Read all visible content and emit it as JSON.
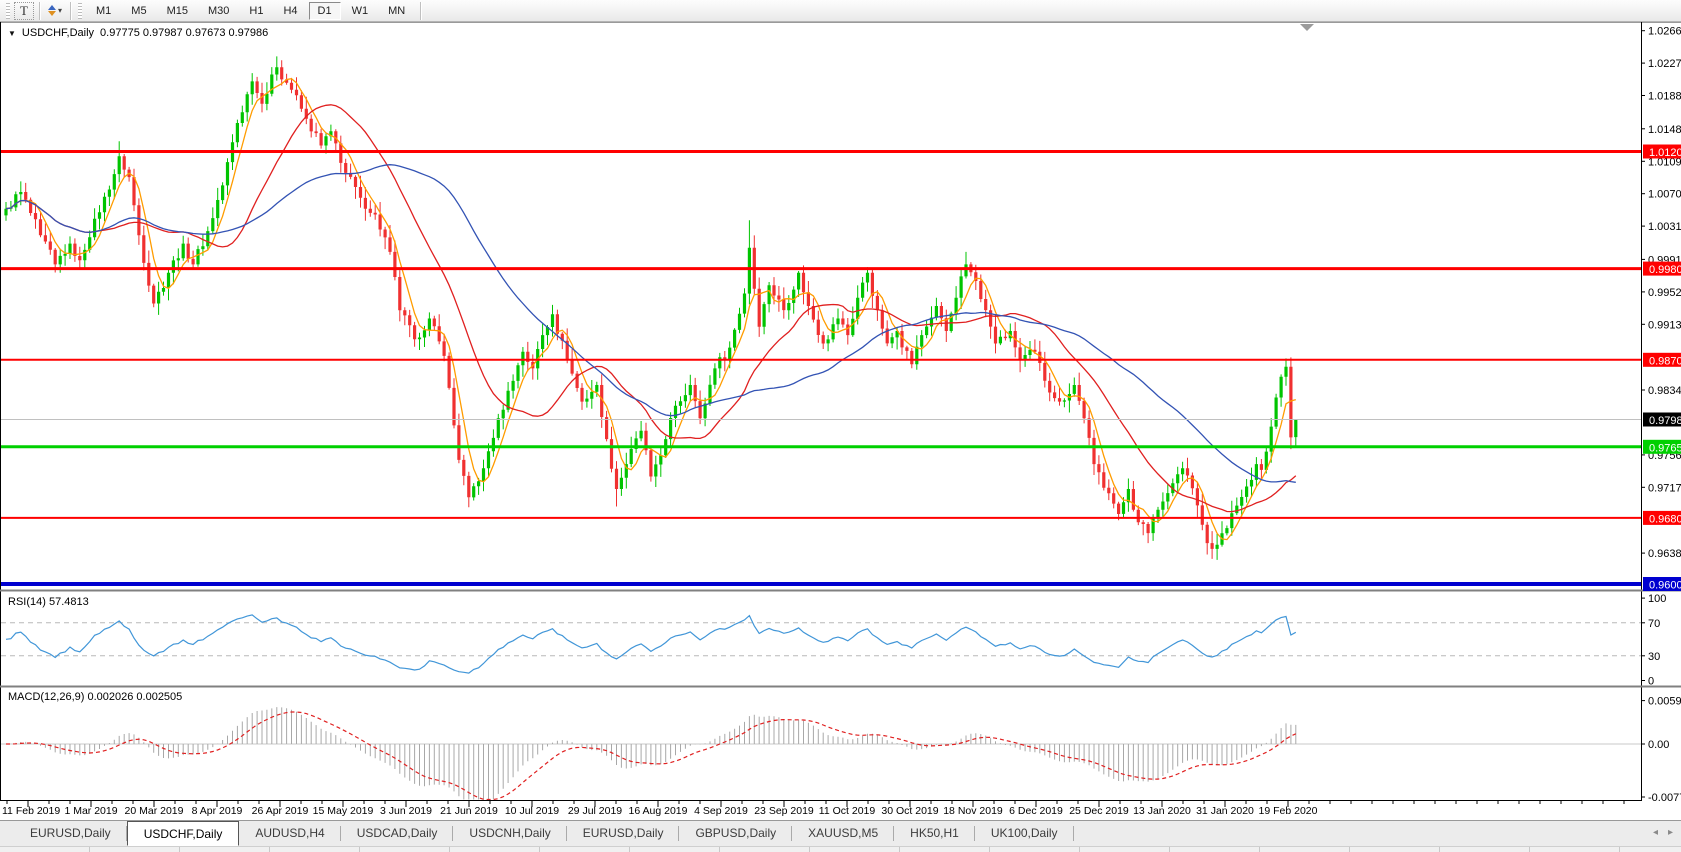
{
  "toolbar": {
    "t_button": "T",
    "timeframes": [
      {
        "label": "M1",
        "active": false
      },
      {
        "label": "M5",
        "active": false
      },
      {
        "label": "M15",
        "active": false
      },
      {
        "label": "M30",
        "active": false
      },
      {
        "label": "H1",
        "active": false
      },
      {
        "label": "H4",
        "active": false
      },
      {
        "label": "D1",
        "active": true
      },
      {
        "label": "W1",
        "active": false
      },
      {
        "label": "MN",
        "active": false
      }
    ]
  },
  "chart": {
    "title": "USDCHF,Daily",
    "ohlc_text": "0.97775 0.97987 0.97673 0.97986"
  },
  "rsi_panel": {
    "label": "RSI(14) 57.4813"
  },
  "macd_panel": {
    "label": "MACD(12,26,9) 0.002026 0.002505"
  },
  "tabs": [
    "EURUSD,Daily",
    "USDCHF,Daily",
    "AUDUSD,H4",
    "USDCAD,Daily",
    "USDCNH,Daily",
    "EURUSD,Daily",
    "GBPUSD,Daily",
    "XAUUSD,M5",
    "HK50,H1",
    "UK100,Daily"
  ],
  "active_tab_index": 1,
  "tab_arrows": {
    "left": "◂",
    "right": "▸"
  },
  "chart_data": {
    "type": "candlestick",
    "symbol": "USDCHF",
    "timeframe": "Daily",
    "bars": 263,
    "last_bar": {
      "open": 0.97775,
      "high": 0.97987,
      "low": 0.97673,
      "close": 0.97986
    },
    "price_axis_range": {
      "top": 1.0274,
      "bottom": 0.95948
    },
    "y_ticks": [
      "1.02660",
      "1.02270",
      "1.01880",
      "1.01480",
      "1.01090",
      "1.00700",
      "1.00310",
      "0.99910",
      "0.99520",
      "0.99130",
      "0.98340",
      "0.97560",
      "0.97170",
      "0.96380"
    ],
    "x_dates": [
      "11 Feb 2019",
      "1 Mar 2019",
      "20 Mar 2019",
      "8 Apr 2019",
      "26 Apr 2019",
      "15 May 2019",
      "3 Jun 2019",
      "21 Jun 2019",
      "10 Jul 2019",
      "29 Jul 2019",
      "16 Aug 2019",
      "4 Sep 2019",
      "23 Sep 2019",
      "11 Oct 2019",
      "30 Oct 2019",
      "18 Nov 2019",
      "6 Dec 2019",
      "25 Dec 2019",
      "13 Jan 2020",
      "31 Jan 2020",
      "19 Feb 2020"
    ],
    "hlines": [
      {
        "price": 1.01207,
        "label": "1.01207",
        "color": "#ff0000",
        "width": 3
      },
      {
        "price": 0.998,
        "label": "0.99800",
        "color": "#ff0000",
        "width": 3
      },
      {
        "price": 0.98703,
        "label": "0.98703",
        "color": "#ff0000",
        "width": 2
      },
      {
        "price": 0.97658,
        "label": "0.97658",
        "color": "#00d000",
        "width": 3
      },
      {
        "price": 0.96803,
        "label": "0.96803",
        "color": "#ff0000",
        "width": 2
      },
      {
        "price": 0.96008,
        "label": "0.96008",
        "color": "#0000d0",
        "width": 4
      }
    ],
    "current_price": {
      "price": 0.97986,
      "label": "0.97986",
      "line_color": "#c0c0c0",
      "badge_color": "#000000"
    },
    "candle_up_color": "#00c400",
    "candle_down_color": "#f03030",
    "moving_averages": [
      {
        "name": "fast",
        "period": 5,
        "color": "#ff9c00"
      },
      {
        "name": "mid",
        "period": 20,
        "color": "#e02020"
      },
      {
        "name": "slow",
        "period": 45,
        "color": "#3353b4"
      }
    ],
    "close_anchors": [
      [
        0,
        1.0052
      ],
      [
        3,
        1.0072
      ],
      [
        7,
        1.002
      ],
      [
        10,
        0.9985
      ],
      [
        13,
        1.001
      ],
      [
        15,
        0.999
      ],
      [
        18,
        1.004
      ],
      [
        21,
        1.0075
      ],
      [
        23,
        1.0115
      ],
      [
        25,
        1.009
      ],
      [
        27,
        1.002
      ],
      [
        30,
        0.9938
      ],
      [
        33,
        0.9975
      ],
      [
        36,
        1.001
      ],
      [
        38,
        0.9985
      ],
      [
        41,
        1.0025
      ],
      [
        44,
        1.008
      ],
      [
        47,
        1.0155
      ],
      [
        50,
        1.0205
      ],
      [
        52,
        1.0178
      ],
      [
        55,
        1.0222
      ],
      [
        58,
        1.0195
      ],
      [
        61,
        1.016
      ],
      [
        64,
        1.0128
      ],
      [
        66,
        1.0145
      ],
      [
        69,
        1.0095
      ],
      [
        72,
        1.0065
      ],
      [
        75,
        1.0045
      ],
      [
        78,
        1.0
      ],
      [
        80,
        0.993
      ],
      [
        83,
        0.9895
      ],
      [
        86,
        0.992
      ],
      [
        89,
        0.9875
      ],
      [
        92,
        0.975
      ],
      [
        94,
        0.9705
      ],
      [
        97,
        0.974
      ],
      [
        100,
        0.98
      ],
      [
        103,
        0.9845
      ],
      [
        105,
        0.988
      ],
      [
        107,
        0.986
      ],
      [
        109,
        0.99
      ],
      [
        111,
        0.9925
      ],
      [
        114,
        0.987
      ],
      [
        117,
        0.982
      ],
      [
        120,
        0.984
      ],
      [
        122,
        0.9775
      ],
      [
        124,
        0.9715
      ],
      [
        126,
        0.9745
      ],
      [
        129,
        0.9785
      ],
      [
        131,
        0.973
      ],
      [
        134,
        0.9775
      ],
      [
        136,
        0.9815
      ],
      [
        139,
        0.984
      ],
      [
        141,
        0.98
      ],
      [
        144,
        0.986
      ],
      [
        147,
        0.9885
      ],
      [
        150,
        0.995
      ],
      [
        151,
        1.0005
      ],
      [
        153,
        0.991
      ],
      [
        155,
        0.996
      ],
      [
        158,
        0.993
      ],
      [
        161,
        0.9975
      ],
      [
        163,
        0.9935
      ],
      [
        166,
        0.989
      ],
      [
        169,
        0.992
      ],
      [
        171,
        0.99
      ],
      [
        173,
        0.9945
      ],
      [
        175,
        0.9975
      ],
      [
        177,
        0.993
      ],
      [
        179,
        0.989
      ],
      [
        181,
        0.9905
      ],
      [
        184,
        0.9865
      ],
      [
        186,
        0.99
      ],
      [
        189,
        0.9935
      ],
      [
        191,
        0.9905
      ],
      [
        193,
        0.9945
      ],
      [
        195,
        0.9985
      ],
      [
        197,
        0.9965
      ],
      [
        199,
        0.993
      ],
      [
        201,
        0.989
      ],
      [
        204,
        0.9905
      ],
      [
        206,
        0.987
      ],
      [
        209,
        0.988
      ],
      [
        211,
        0.9845
      ],
      [
        214,
        0.982
      ],
      [
        217,
        0.984
      ],
      [
        219,
        0.98
      ],
      [
        221,
        0.9745
      ],
      [
        224,
        0.971
      ],
      [
        226,
        0.9685
      ],
      [
        228,
        0.9715
      ],
      [
        230,
        0.9675
      ],
      [
        232,
        0.9662
      ],
      [
        233,
        0.968
      ],
      [
        235,
        0.97
      ],
      [
        237,
        0.9722
      ],
      [
        239,
        0.974
      ],
      [
        241,
        0.9716
      ],
      [
        243,
        0.9672
      ],
      [
        244,
        0.965
      ],
      [
        245,
        0.9643
      ],
      [
        246,
        0.9648
      ],
      [
        248,
        0.9668
      ],
      [
        250,
        0.9695
      ],
      [
        252,
        0.9718
      ],
      [
        254,
        0.9745
      ],
      [
        255,
        0.9738
      ],
      [
        256,
        0.976
      ],
      [
        257,
        0.979
      ],
      [
        258,
        0.9825
      ],
      [
        259,
        0.985
      ],
      [
        260,
        0.9862
      ],
      [
        261,
        0.9777
      ],
      [
        262,
        0.97986
      ]
    ],
    "wick_overrides": [
      [
        23,
        "h",
        1.0133
      ],
      [
        50,
        "h",
        1.0215
      ],
      [
        55,
        "h",
        1.0235
      ],
      [
        94,
        "l",
        0.9693
      ],
      [
        124,
        "l",
        0.9694
      ],
      [
        151,
        "h",
        1.0038
      ],
      [
        195,
        "h",
        1.0
      ],
      [
        232,
        "l",
        0.965
      ],
      [
        245,
        "l",
        0.9631
      ],
      [
        260,
        "h",
        0.9872
      ],
      [
        261,
        "l",
        0.9763
      ]
    ],
    "rsi": {
      "period": 14,
      "value": 57.4813,
      "color": "#4196d8",
      "levels": [
        70,
        30
      ],
      "ticks": [
        "100",
        "70",
        "30",
        "0"
      ]
    },
    "macd": {
      "fast": 12,
      "slow": 26,
      "signal_period": 9,
      "value": 0.002026,
      "signal_value": 0.002505,
      "ticks": [
        "0.005986",
        "0.00",
        "-0.00773"
      ],
      "hist_color": "#a8a8a8",
      "signal_color": "#e02020"
    }
  }
}
